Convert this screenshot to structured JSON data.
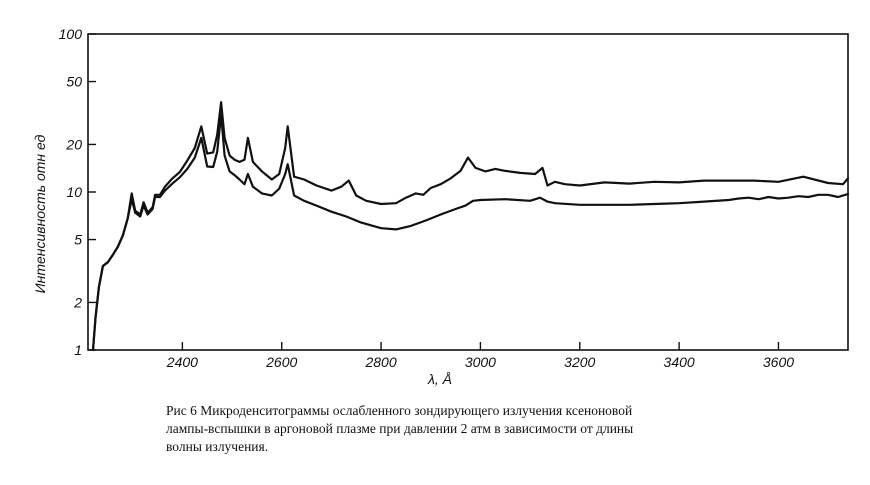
{
  "chart_data": {
    "type": "line",
    "xlabel": "λ, Å",
    "ylabel": "Интенсивность отн ед",
    "xlim": [
      2210,
      3740
    ],
    "ylim": [
      1,
      100
    ],
    "yscale": "log",
    "x_ticks": [
      2400,
      2600,
      2800,
      3000,
      3200,
      3400,
      3600
    ],
    "y_ticks": [
      1,
      2,
      5,
      10,
      20,
      50,
      100
    ],
    "grid": false,
    "line_color": "#111111",
    "series": [
      {
        "x": [
          2220,
          2225,
          2232,
          2240,
          2250,
          2260,
          2270,
          2280,
          2290,
          2298,
          2305,
          2315,
          2322,
          2330,
          2340,
          2345,
          2355,
          2365,
          2380,
          2395,
          2410,
          2425,
          2438,
          2450,
          2462,
          2470,
          2478,
          2485,
          2495,
          2505,
          2515,
          2525,
          2532,
          2542,
          2560,
          2580,
          2595,
          2607,
          2612,
          2625,
          2645,
          2670,
          2700,
          2720,
          2735,
          2750,
          2770,
          2800,
          2830,
          2850,
          2870,
          2885,
          2900,
          2920,
          2940,
          2960,
          2975,
          2990,
          3010,
          3030,
          3050,
          3080,
          3110,
          3125,
          3135,
          3150,
          3170,
          3200,
          3250,
          3300,
          3350,
          3400,
          3450,
          3500,
          3550,
          3600,
          3650,
          3700,
          3730,
          3740
        ],
        "values": [
          1.0,
          1.6,
          2.5,
          3.4,
          3.6,
          4.0,
          4.5,
          5.3,
          6.8,
          9.8,
          7.6,
          7.2,
          8.6,
          7.4,
          8.0,
          9.6,
          9.6,
          10.8,
          12.2,
          13.4,
          15.8,
          19.0,
          26.0,
          17.5,
          17.8,
          23.0,
          37.0,
          22.0,
          17.0,
          16.0,
          15.5,
          16.0,
          22.0,
          15.5,
          13.5,
          12.0,
          13.0,
          19.0,
          26.0,
          12.5,
          12.0,
          11.0,
          10.2,
          10.8,
          11.8,
          9.5,
          8.8,
          8.4,
          8.5,
          9.2,
          9.8,
          9.6,
          10.6,
          11.2,
          12.2,
          13.6,
          16.5,
          14.2,
          13.5,
          14.0,
          13.6,
          13.2,
          13.0,
          14.2,
          11.0,
          11.6,
          11.2,
          11.0,
          11.5,
          11.3,
          11.6,
          11.5,
          11.8,
          11.8,
          11.8,
          11.6,
          12.5,
          11.4,
          11.2,
          12.2
        ]
      },
      {
        "x": [
          2220,
          2225,
          2232,
          2240,
          2250,
          2260,
          2270,
          2280,
          2290,
          2298,
          2305,
          2315,
          2322,
          2330,
          2340,
          2345,
          2355,
          2365,
          2380,
          2395,
          2410,
          2425,
          2438,
          2450,
          2462,
          2470,
          2478,
          2485,
          2495,
          2505,
          2515,
          2525,
          2532,
          2542,
          2560,
          2580,
          2595,
          2607,
          2612,
          2625,
          2645,
          2670,
          2700,
          2730,
          2760,
          2800,
          2830,
          2860,
          2890,
          2920,
          2950,
          2970,
          2985,
          3000,
          3050,
          3100,
          3120,
          3135,
          3150,
          3200,
          3250,
          3300,
          3350,
          3400,
          3450,
          3500,
          3520,
          3540,
          3560,
          3580,
          3600,
          3620,
          3640,
          3660,
          3680,
          3700,
          3720,
          3740
        ],
        "values": [
          1.0,
          1.6,
          2.5,
          3.4,
          3.6,
          4.0,
          4.5,
          5.3,
          6.8,
          9.0,
          7.4,
          7.0,
          8.2,
          7.2,
          7.8,
          9.3,
          9.3,
          10.2,
          11.3,
          12.4,
          14.0,
          16.5,
          22.0,
          14.5,
          14.4,
          18.0,
          31.0,
          17.0,
          13.5,
          12.8,
          12.0,
          11.2,
          13.0,
          10.8,
          9.8,
          9.5,
          10.5,
          13.0,
          15.0,
          9.5,
          8.8,
          8.2,
          7.5,
          7.0,
          6.4,
          5.9,
          5.8,
          6.1,
          6.6,
          7.2,
          7.8,
          8.2,
          8.8,
          8.9,
          9.0,
          8.8,
          9.2,
          8.7,
          8.5,
          8.3,
          8.3,
          8.3,
          8.4,
          8.5,
          8.7,
          8.9,
          9.1,
          9.2,
          9.0,
          9.3,
          9.1,
          9.2,
          9.4,
          9.3,
          9.6,
          9.6,
          9.3,
          9.7
        ]
      }
    ]
  },
  "caption": {
    "line1": "Рис 6  Микроденситограммы ослабленного зондирующего излучения ксеноновой",
    "line2": "лампы-вспышки в аргоновой плазме при давлении 2 атм в зависимости от длины",
    "line3": "волны излучения."
  }
}
